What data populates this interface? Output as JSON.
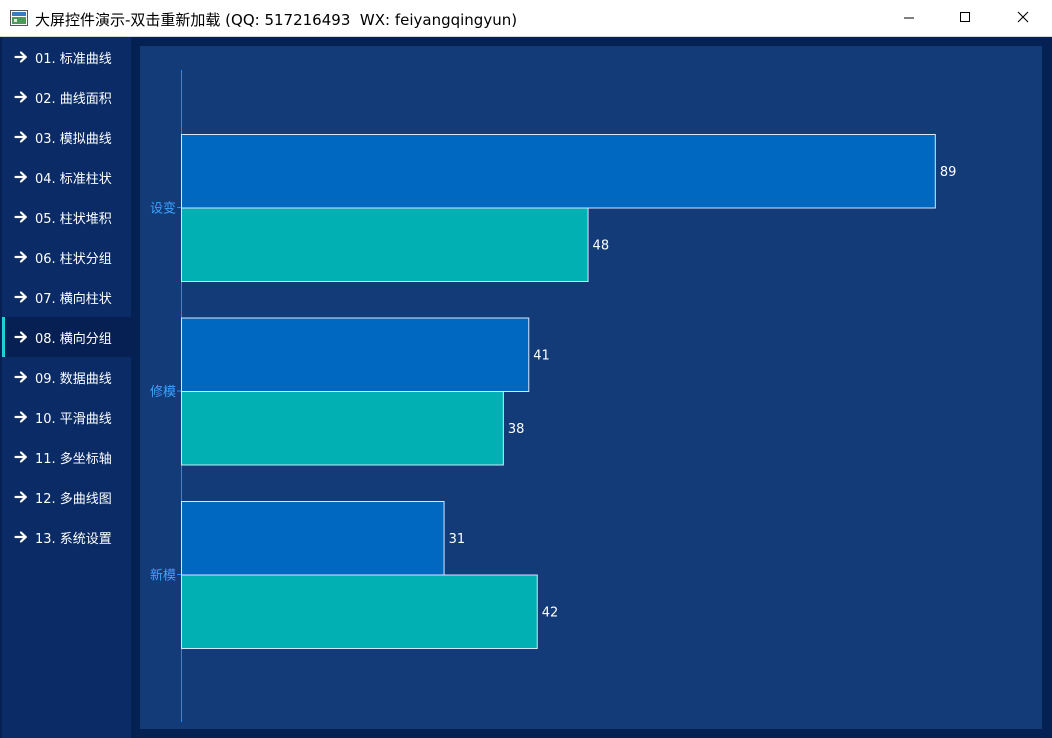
{
  "window": {
    "title": "大屏控件演示-双击重新加载 (QQ: 517216493  WX: feiyangqingyun)"
  },
  "sidebar": {
    "active_index": 7,
    "items": [
      {
        "label": "01. 标准曲线"
      },
      {
        "label": "02. 曲线面积"
      },
      {
        "label": "03. 模拟曲线"
      },
      {
        "label": "04. 标准柱状"
      },
      {
        "label": "05. 柱状堆积"
      },
      {
        "label": "06. 柱状分组"
      },
      {
        "label": "07. 横向柱状"
      },
      {
        "label": "08. 横向分组"
      },
      {
        "label": "09. 数据曲线"
      },
      {
        "label": "10. 平滑曲线"
      },
      {
        "label": "11. 多坐标轴"
      },
      {
        "label": "12. 多曲线图"
      },
      {
        "label": "13. 系统设置"
      }
    ]
  },
  "colors": {
    "series1": "#0068c0",
    "series2": "#00b0b2",
    "axis": "#1c8fff",
    "category_text": "#3ba3ff"
  },
  "chart_data": {
    "type": "bar",
    "orientation": "horizontal",
    "categories": [
      "设变",
      "修模",
      "新模"
    ],
    "series": [
      {
        "values": [
          89,
          41,
          31
        ]
      },
      {
        "values": [
          48,
          38,
          42
        ]
      }
    ],
    "xlim": [
      0,
      100
    ],
    "grid": false,
    "data_labels": true
  }
}
